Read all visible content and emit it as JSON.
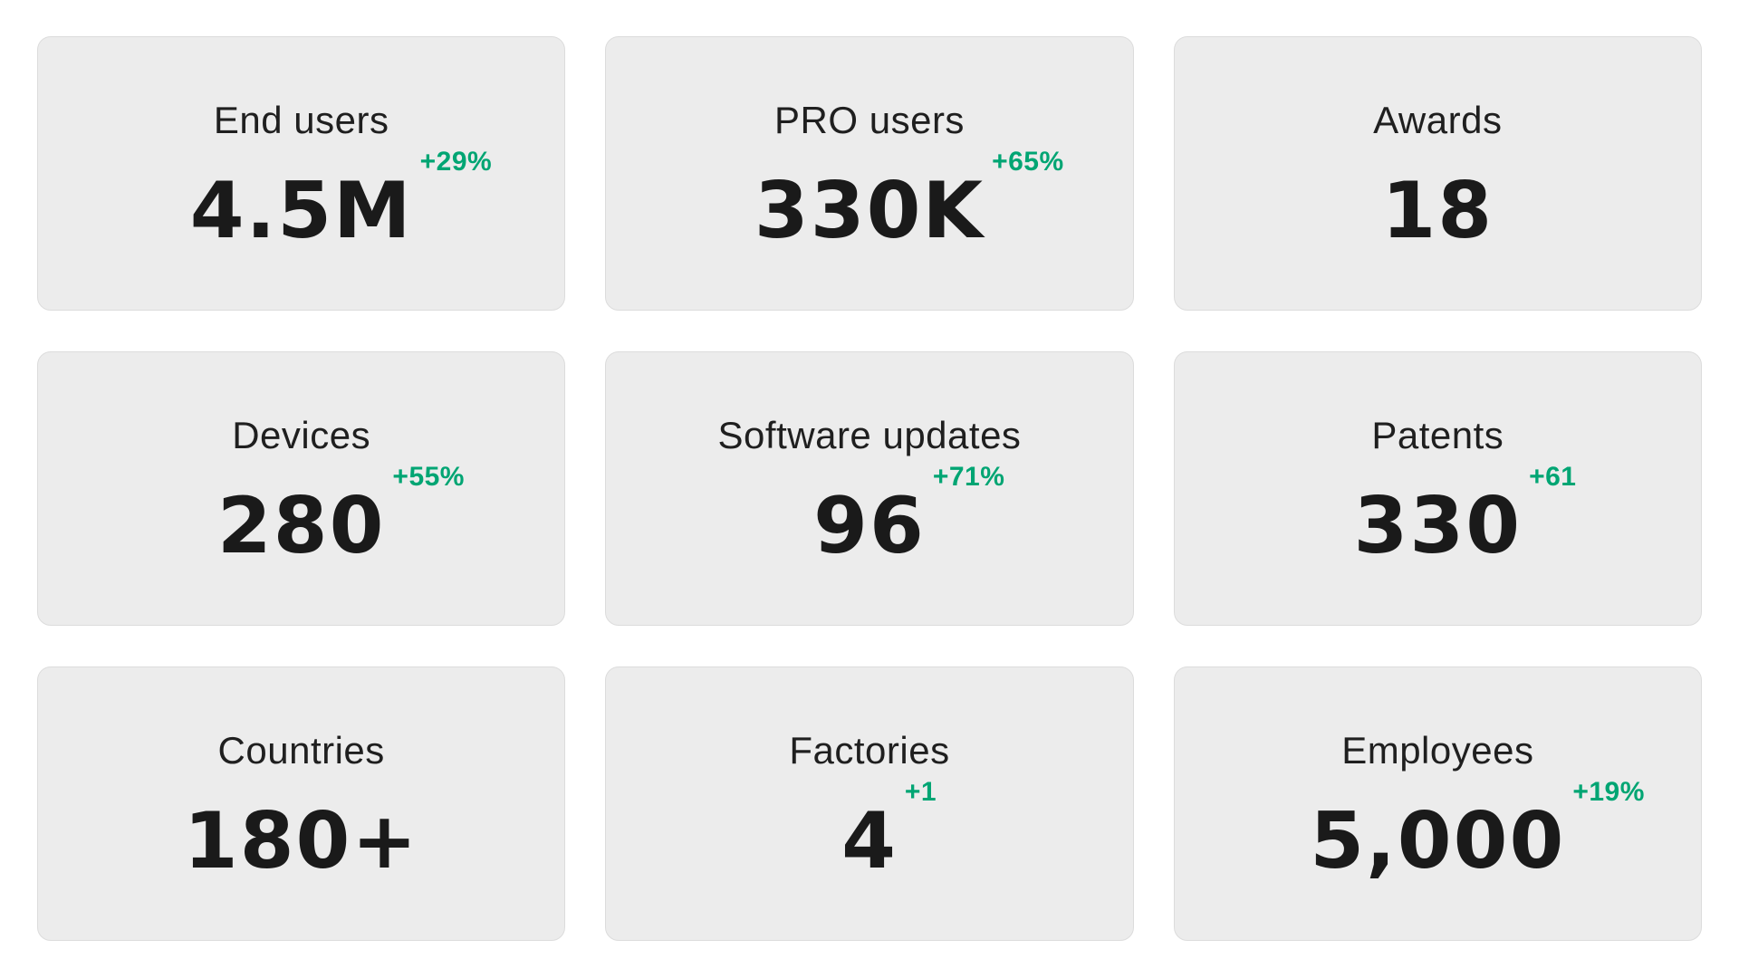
{
  "colors": {
    "page_background": "#ffffff",
    "card_background": "#ececec",
    "card_border": "#dcdcdc",
    "text_dark": "#1a1a1a",
    "delta_green": "#00a573"
  },
  "stats": {
    "cards": [
      {
        "id": "end-users",
        "label": "End users",
        "value": "4.5M",
        "delta": "+29%"
      },
      {
        "id": "pro-users",
        "label": "PRO users",
        "value": "330K",
        "delta": "+65%"
      },
      {
        "id": "awards",
        "label": "Awards",
        "value": "18",
        "delta": ""
      },
      {
        "id": "devices",
        "label": "Devices",
        "value": "280",
        "delta": "+55%"
      },
      {
        "id": "software-updates",
        "label": "Software updates",
        "value": "96",
        "delta": "+71%"
      },
      {
        "id": "patents",
        "label": "Patents",
        "value": "330",
        "delta": "+61"
      },
      {
        "id": "countries",
        "label": "Countries",
        "value": "180+",
        "delta": ""
      },
      {
        "id": "factories",
        "label": "Factories",
        "value": "4",
        "delta": "+1"
      },
      {
        "id": "employees",
        "label": "Employees",
        "value": "5,000",
        "delta": "+19%"
      }
    ]
  }
}
